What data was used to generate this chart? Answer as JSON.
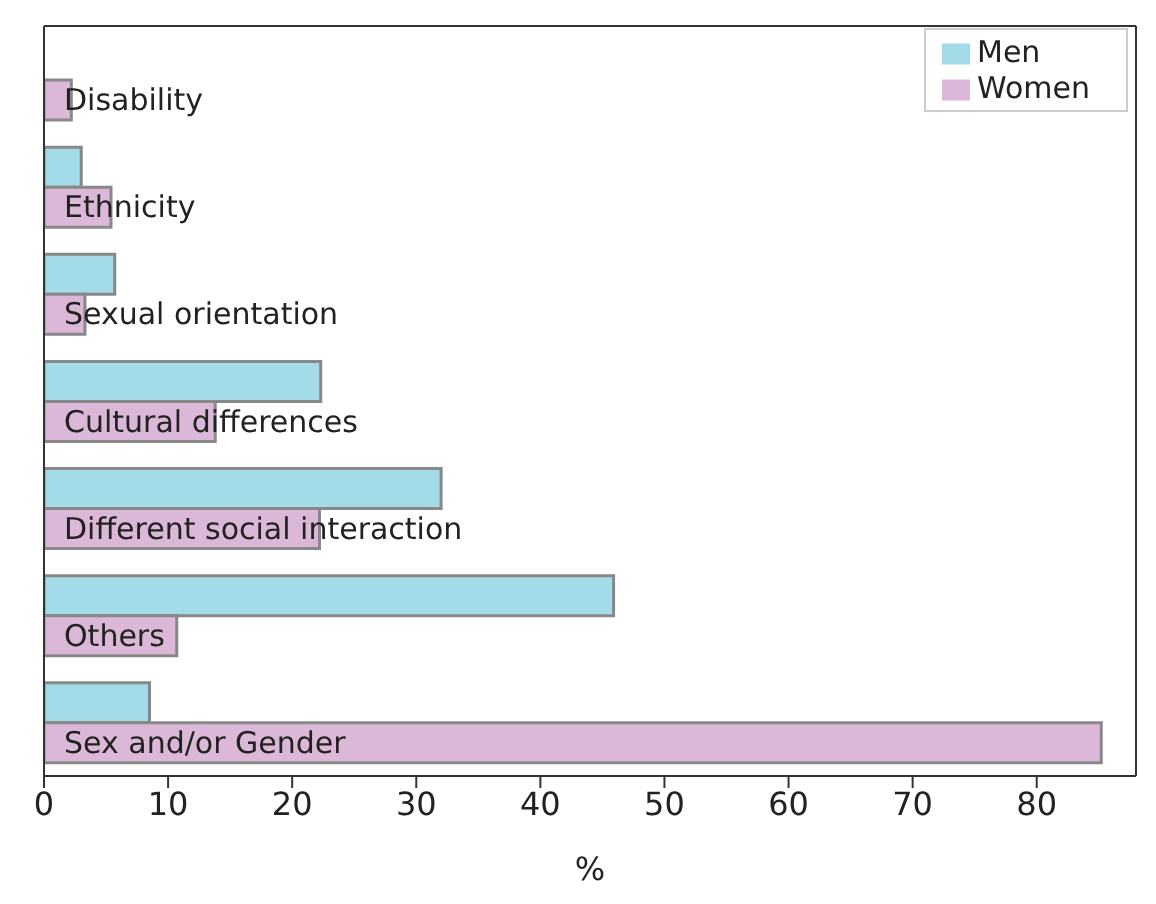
{
  "chart_data": {
    "type": "bar",
    "orientation": "horizontal",
    "xlabel": "%",
    "categories": [
      "Disability",
      "Ethnicity",
      "Sexual orientation",
      "Cultural differences",
      "Different social interaction",
      "Others",
      "Sex and/or Gender"
    ],
    "series": [
      {
        "name": "Men",
        "color": "#a3dbe8",
        "values": [
          null,
          3.0,
          5.7,
          22.3,
          32.0,
          45.9,
          8.5
        ]
      },
      {
        "name": "Women",
        "color": "#dcb8d8",
        "values": [
          2.2,
          5.4,
          3.3,
          13.8,
          22.2,
          10.7,
          85.2
        ]
      }
    ],
    "xlim": [
      0,
      88
    ],
    "xticks": [
      0,
      10,
      20,
      30,
      40,
      50,
      60,
      70,
      80
    ],
    "grid": false,
    "legend": "top right"
  }
}
